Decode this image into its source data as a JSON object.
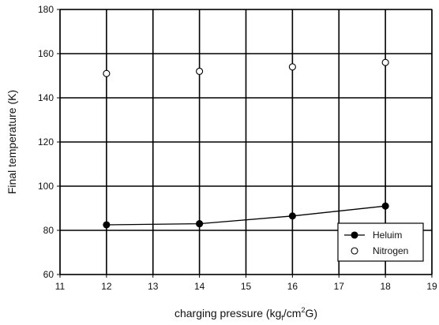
{
  "chart_data": {
    "type": "scatter",
    "xlabel_parts": [
      "charging pressure (kg",
      "f",
      "/cm",
      "2",
      "G)"
    ],
    "ylabel": "Final temperature (K)",
    "xlim": [
      11,
      19
    ],
    "ylim": [
      60,
      180
    ],
    "x_ticks": [
      11,
      12,
      13,
      14,
      15,
      16,
      17,
      18,
      19
    ],
    "y_ticks": [
      60,
      80,
      100,
      120,
      140,
      160,
      180
    ],
    "grid": true,
    "legend_position": "bottom-right",
    "series": [
      {
        "name": "Heluim",
        "marker": "filled-circle",
        "line": true,
        "color": "#000000",
        "x": [
          12,
          14,
          16,
          18
        ],
        "y": [
          82.5,
          83,
          86.5,
          91
        ]
      },
      {
        "name": "Nitrogen",
        "marker": "open-circle",
        "line": false,
        "color": "#000000",
        "x": [
          12,
          14,
          16,
          18
        ],
        "y": [
          151,
          152,
          154,
          156
        ]
      }
    ]
  }
}
